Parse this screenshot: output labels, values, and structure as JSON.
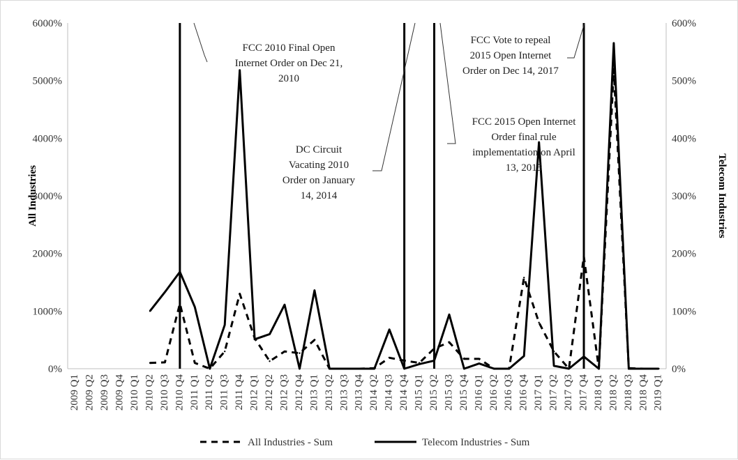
{
  "chart_data": {
    "type": "line",
    "title": "",
    "y_left_label": "All Industries",
    "y_right_label": "Telecom Industries",
    "y_left_ticks": [
      "0%",
      "1000%",
      "2000%",
      "3000%",
      "4000%",
      "5000%",
      "6000%"
    ],
    "y_right_ticks": [
      "0%",
      "100%",
      "200%",
      "300%",
      "400%",
      "500%",
      "600%"
    ],
    "y_left_range": [
      0,
      6000
    ],
    "y_right_range": [
      0,
      600
    ],
    "categories": [
      "2009 Q1",
      "2009 Q2",
      "2009 Q3",
      "2009 Q4",
      "2010 Q1",
      "2010 Q2",
      "2010 Q3",
      "2010 Q4",
      "2011 Q1",
      "2011 Q2",
      "2011 Q3",
      "2011 Q4",
      "2012 Q1",
      "2012 Q2",
      "2012 Q3",
      "2012 Q4",
      "2013 Q1",
      "2013 Q2",
      "2013 Q3",
      "2013 Q4",
      "2014 Q2",
      "2014 Q3",
      "2014 Q4",
      "2015 Q1",
      "2015 Q2",
      "2015 Q3",
      "2015 Q4",
      "2016 Q1",
      "2016 Q2",
      "2016 Q3",
      "2016 Q4",
      "2017 Q1",
      "2017 Q2",
      "2017 Q3",
      "2017 Q4",
      "2018 Q1",
      "2018 Q2",
      "2018 Q3",
      "2018 Q4",
      "2019 Q1"
    ],
    "series": [
      {
        "name": "All Industries - Sum",
        "axis": "left",
        "style": "dashed",
        "color": "#000000",
        "values": [
          null,
          null,
          null,
          null,
          null,
          100,
          110,
          1130,
          100,
          0,
          300,
          1300,
          530,
          130,
          300,
          270,
          500,
          0,
          0,
          0,
          10,
          190,
          140,
          100,
          350,
          460,
          170,
          170,
          0,
          0,
          1580,
          800,
          300,
          0,
          1950,
          0,
          5200,
          10,
          0,
          0
        ]
      },
      {
        "name": "Telecom Industries - Sum",
        "axis": "right",
        "style": "solid",
        "color": "#000000",
        "values": [
          null,
          null,
          null,
          null,
          null,
          100,
          133,
          168,
          107,
          0,
          76,
          518,
          51,
          60,
          111,
          0,
          136,
          0,
          0,
          0,
          0,
          68,
          0,
          8,
          14,
          94,
          0,
          9,
          0,
          0,
          22,
          393,
          5,
          0,
          21,
          0,
          565,
          0,
          0,
          0
        ]
      }
    ],
    "events": [
      {
        "label": "FCC 2010 Final Open Internet Order on Dec 21, 2010",
        "lines": [
          "FCC 2010 Final Open",
          "Internet Order on Dec 21,",
          "2010"
        ],
        "category": "2010 Q4"
      },
      {
        "label": "DC Circuit Vacating 2010 Order on January 14, 2014",
        "lines": [
          "DC Circuit",
          "Vacating 2010",
          "Order on January",
          "14, 2014"
        ],
        "category": "2014 Q4"
      },
      {
        "label": "FCC 2015 Open Internet Order final rule implementation on April 13, 2015",
        "lines": [
          "FCC 2015 Open Internet",
          "Order final rule",
          "implementation on April",
          "13, 2015"
        ],
        "category": "2015 Q2"
      },
      {
        "label": "FCC Vote to repeal 2015 Open Internet Order on Dec 14, 2017",
        "lines": [
          "FCC Vote to repeal",
          "2015 Open Internet",
          "Order on Dec 14, 2017"
        ],
        "category": "2017 Q4"
      }
    ],
    "grid": false,
    "legend_position": "bottom"
  }
}
